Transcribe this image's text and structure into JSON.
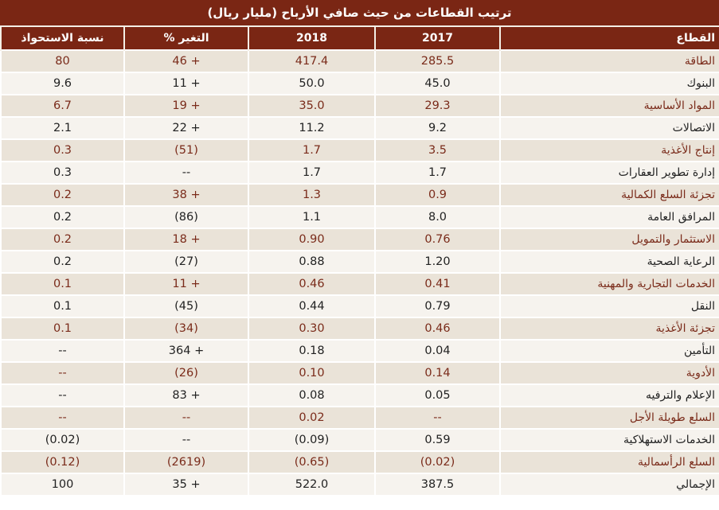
{
  "title": "ترتيب القطاعات من حيث صافي الأرباح (مليار ريال)",
  "columns": {
    "sector": "القطاع",
    "y2017": "2017",
    "y2018": "2018",
    "change": "التغير %",
    "share": "نسبة الاستحواذ"
  },
  "colors": {
    "header_bg": "#7a2614",
    "odd_row_bg": "#eae3d8",
    "even_row_bg": "#f6f3ee",
    "odd_text": "#7a2b1a",
    "even_text": "#222222"
  },
  "rows": [
    {
      "sector": "الطاقة",
      "y2017": "285.5",
      "y2018": "417.4",
      "change": "46 +",
      "share": "80"
    },
    {
      "sector": "البنوك",
      "y2017": "45.0",
      "y2018": "50.0",
      "change": "11 +",
      "share": "9.6"
    },
    {
      "sector": "المواد الأساسية",
      "y2017": "29.3",
      "y2018": "35.0",
      "change": "19 +",
      "share": "6.7"
    },
    {
      "sector": "الاتصالات",
      "y2017": "9.2",
      "y2018": "11.2",
      "change": "22 +",
      "share": "2.1"
    },
    {
      "sector": "إنتاج الأغذية",
      "y2017": "3.5",
      "y2018": "1.7",
      "change": "(51)",
      "share": "0.3"
    },
    {
      "sector": "إدارة تطوير العقارات",
      "y2017": "1.7",
      "y2018": "1.7",
      "change": "--",
      "share": "0.3"
    },
    {
      "sector": "تجزئة السلع الكمالية",
      "y2017": "0.9",
      "y2018": "1.3",
      "change": "38 +",
      "share": "0.2"
    },
    {
      "sector": "المرافق العامة",
      "y2017": "8.0",
      "y2018": "1.1",
      "change": "(86)",
      "share": "0.2"
    },
    {
      "sector": "الاستثمار والتمويل",
      "y2017": "0.76",
      "y2018": "0.90",
      "change": "18 +",
      "share": "0.2"
    },
    {
      "sector": "الرعاية الصحية",
      "y2017": "1.20",
      "y2018": "0.88",
      "change": "(27)",
      "share": "0.2"
    },
    {
      "sector": "الخدمات التجارية والمهنية",
      "y2017": "0.41",
      "y2018": "0.46",
      "change": "11 +",
      "share": "0.1"
    },
    {
      "sector": "النقل",
      "y2017": "0.79",
      "y2018": "0.44",
      "change": "(45)",
      "share": "0.1"
    },
    {
      "sector": "تجزئة الأغذية",
      "y2017": "0.46",
      "y2018": "0.30",
      "change": "(34)",
      "share": "0.1"
    },
    {
      "sector": "التأمين",
      "y2017": "0.04",
      "y2018": "0.18",
      "change": "364 +",
      "share": "--"
    },
    {
      "sector": "الأدوية",
      "y2017": "0.14",
      "y2018": "0.10",
      "change": "(26)",
      "share": "--"
    },
    {
      "sector": "الإعلام والترفيه",
      "y2017": "0.05",
      "y2018": "0.08",
      "change": "83 +",
      "share": "--"
    },
    {
      "sector": "السلع طويلة الأجل",
      "y2017": "--",
      "y2018": "0.02",
      "change": "--",
      "share": "--"
    },
    {
      "sector": "الخدمات الاستهلاكية",
      "y2017": "0.59",
      "y2018": "(0.09)",
      "change": "--",
      "share": "(0.02)"
    },
    {
      "sector": "السلع الرأسمالية",
      "y2017": "(0.02)",
      "y2018": "(0.65)",
      "change": "(2619)",
      "share": "(0.12)"
    },
    {
      "sector": "الإجمالي",
      "y2017": "387.5",
      "y2018": "522.0",
      "change": "35 +",
      "share": "100"
    }
  ]
}
